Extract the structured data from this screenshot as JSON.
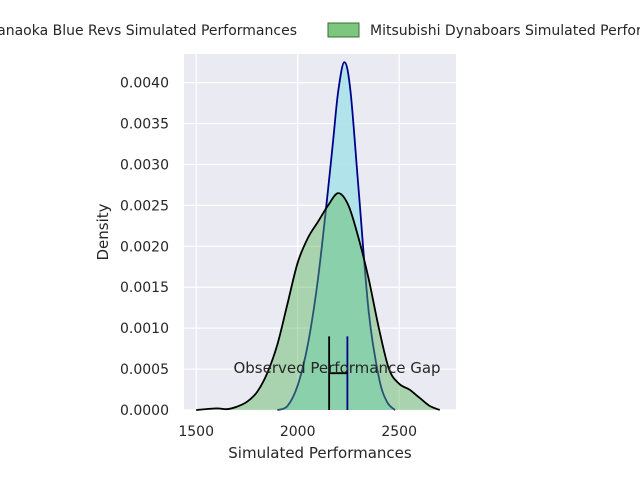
{
  "chart_data": {
    "type": "area",
    "title": "",
    "xlabel": "Simulated Performances",
    "ylabel": "Density",
    "xlim": [
      1440,
      2780
    ],
    "ylim": [
      0,
      0.00435
    ],
    "x_ticks": [
      1500,
      2000,
      2500
    ],
    "x_tick_labels": [
      "1500",
      "2000",
      "2500"
    ],
    "y_ticks": [
      0,
      0.0005,
      0.001,
      0.0015,
      0.002,
      0.0025,
      0.003,
      0.0035,
      0.004
    ],
    "y_tick_labels": [
      "0.0000",
      "0.0005",
      "0.0010",
      "0.0015",
      "0.0020",
      "0.0025",
      "0.0030",
      "0.0035",
      "0.0040"
    ],
    "grid": true,
    "legend_position": "top, above the plot",
    "series": [
      {
        "name": "Hanaoka Blue Revs Simulated Performances",
        "fill_color": "#aee3ea",
        "line_color": "#00008b",
        "points": [
          [
            1900,
            0.0
          ],
          [
            1950,
            5e-05
          ],
          [
            2000,
            0.0003
          ],
          [
            2050,
            0.0008
          ],
          [
            2100,
            0.0016
          ],
          [
            2150,
            0.0027
          ],
          [
            2175,
            0.0033
          ],
          [
            2200,
            0.0039
          ],
          [
            2230,
            0.00425
          ],
          [
            2260,
            0.0039
          ],
          [
            2300,
            0.0027
          ],
          [
            2350,
            0.0012
          ],
          [
            2400,
            0.0004
          ],
          [
            2440,
            0.0001
          ],
          [
            2480,
            0.0
          ]
        ]
      },
      {
        "name": "Mitsubishi Dynaboars Simulated Performances",
        "fill_color": "#5cb85c",
        "line_color": "#000000",
        "points": [
          [
            1500,
            0.0
          ],
          [
            1600,
            2e-05
          ],
          [
            1650,
            1e-05
          ],
          [
            1700,
            4e-05
          ],
          [
            1750,
            0.0001
          ],
          [
            1800,
            0.00022
          ],
          [
            1850,
            0.00045
          ],
          [
            1900,
            0.0008
          ],
          [
            1950,
            0.0013
          ],
          [
            2000,
            0.0018
          ],
          [
            2050,
            0.0021
          ],
          [
            2100,
            0.0023
          ],
          [
            2150,
            0.0025
          ],
          [
            2200,
            0.00265
          ],
          [
            2250,
            0.0025
          ],
          [
            2300,
            0.0021
          ],
          [
            2350,
            0.0016
          ],
          [
            2400,
            0.001
          ],
          [
            2450,
            0.0005
          ],
          [
            2500,
            0.00032
          ],
          [
            2550,
            0.00025
          ],
          [
            2600,
            0.00015
          ],
          [
            2650,
            5e-05
          ],
          [
            2700,
            0.0
          ]
        ]
      }
    ],
    "annotations": {
      "gap_label": "Observed Performance Gap",
      "marker_lines": [
        {
          "x": 2155,
          "y_top": 0.0009,
          "color": "#000000"
        },
        {
          "x": 2245,
          "y_top": 0.0009,
          "color": "#00008b"
        }
      ],
      "gap_bracket": {
        "x_start": 2155,
        "x_end": 2245,
        "y": 0.00045
      }
    }
  },
  "colors": {
    "axes_background": "#eaeaf2",
    "grid": "#ffffff"
  }
}
